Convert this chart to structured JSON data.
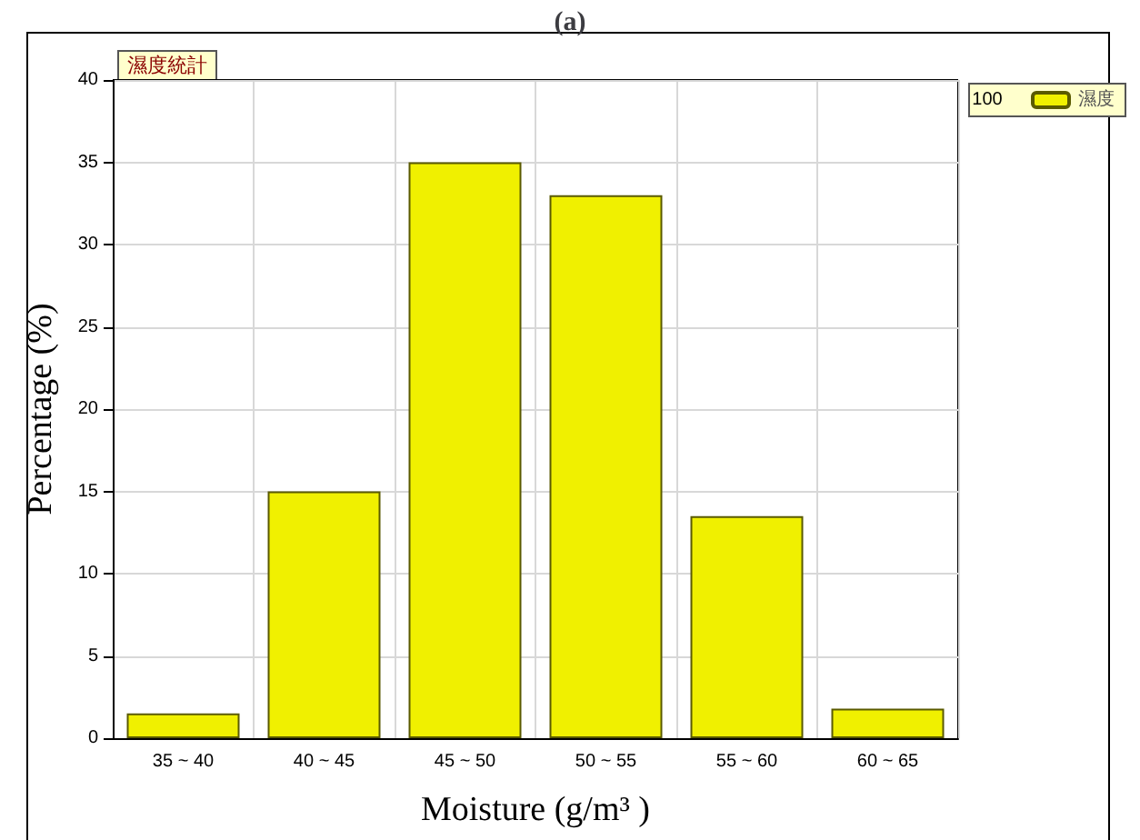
{
  "chart_data": {
    "type": "bar",
    "title": "(a)",
    "subtitle": "濕度統計",
    "xlabel": "Moisture (g/m³ )",
    "ylabel": "Percentage (%)",
    "categories": [
      "35 ~ 40",
      "40 ~ 45",
      "45 ~ 50",
      "50 ~ 55",
      "55 ~ 60",
      "60 ~ 65"
    ],
    "series": [
      {
        "name": "濕度",
        "color": "#f0f000",
        "values": [
          1.5,
          15,
          35,
          33,
          13.5,
          1.8
        ]
      }
    ],
    "annotations": [
      "100"
    ],
    "ylim": [
      0,
      40
    ],
    "yticks": [
      0,
      5,
      10,
      15,
      20,
      25,
      30,
      35,
      40
    ],
    "grid": true,
    "legend": "top right"
  }
}
